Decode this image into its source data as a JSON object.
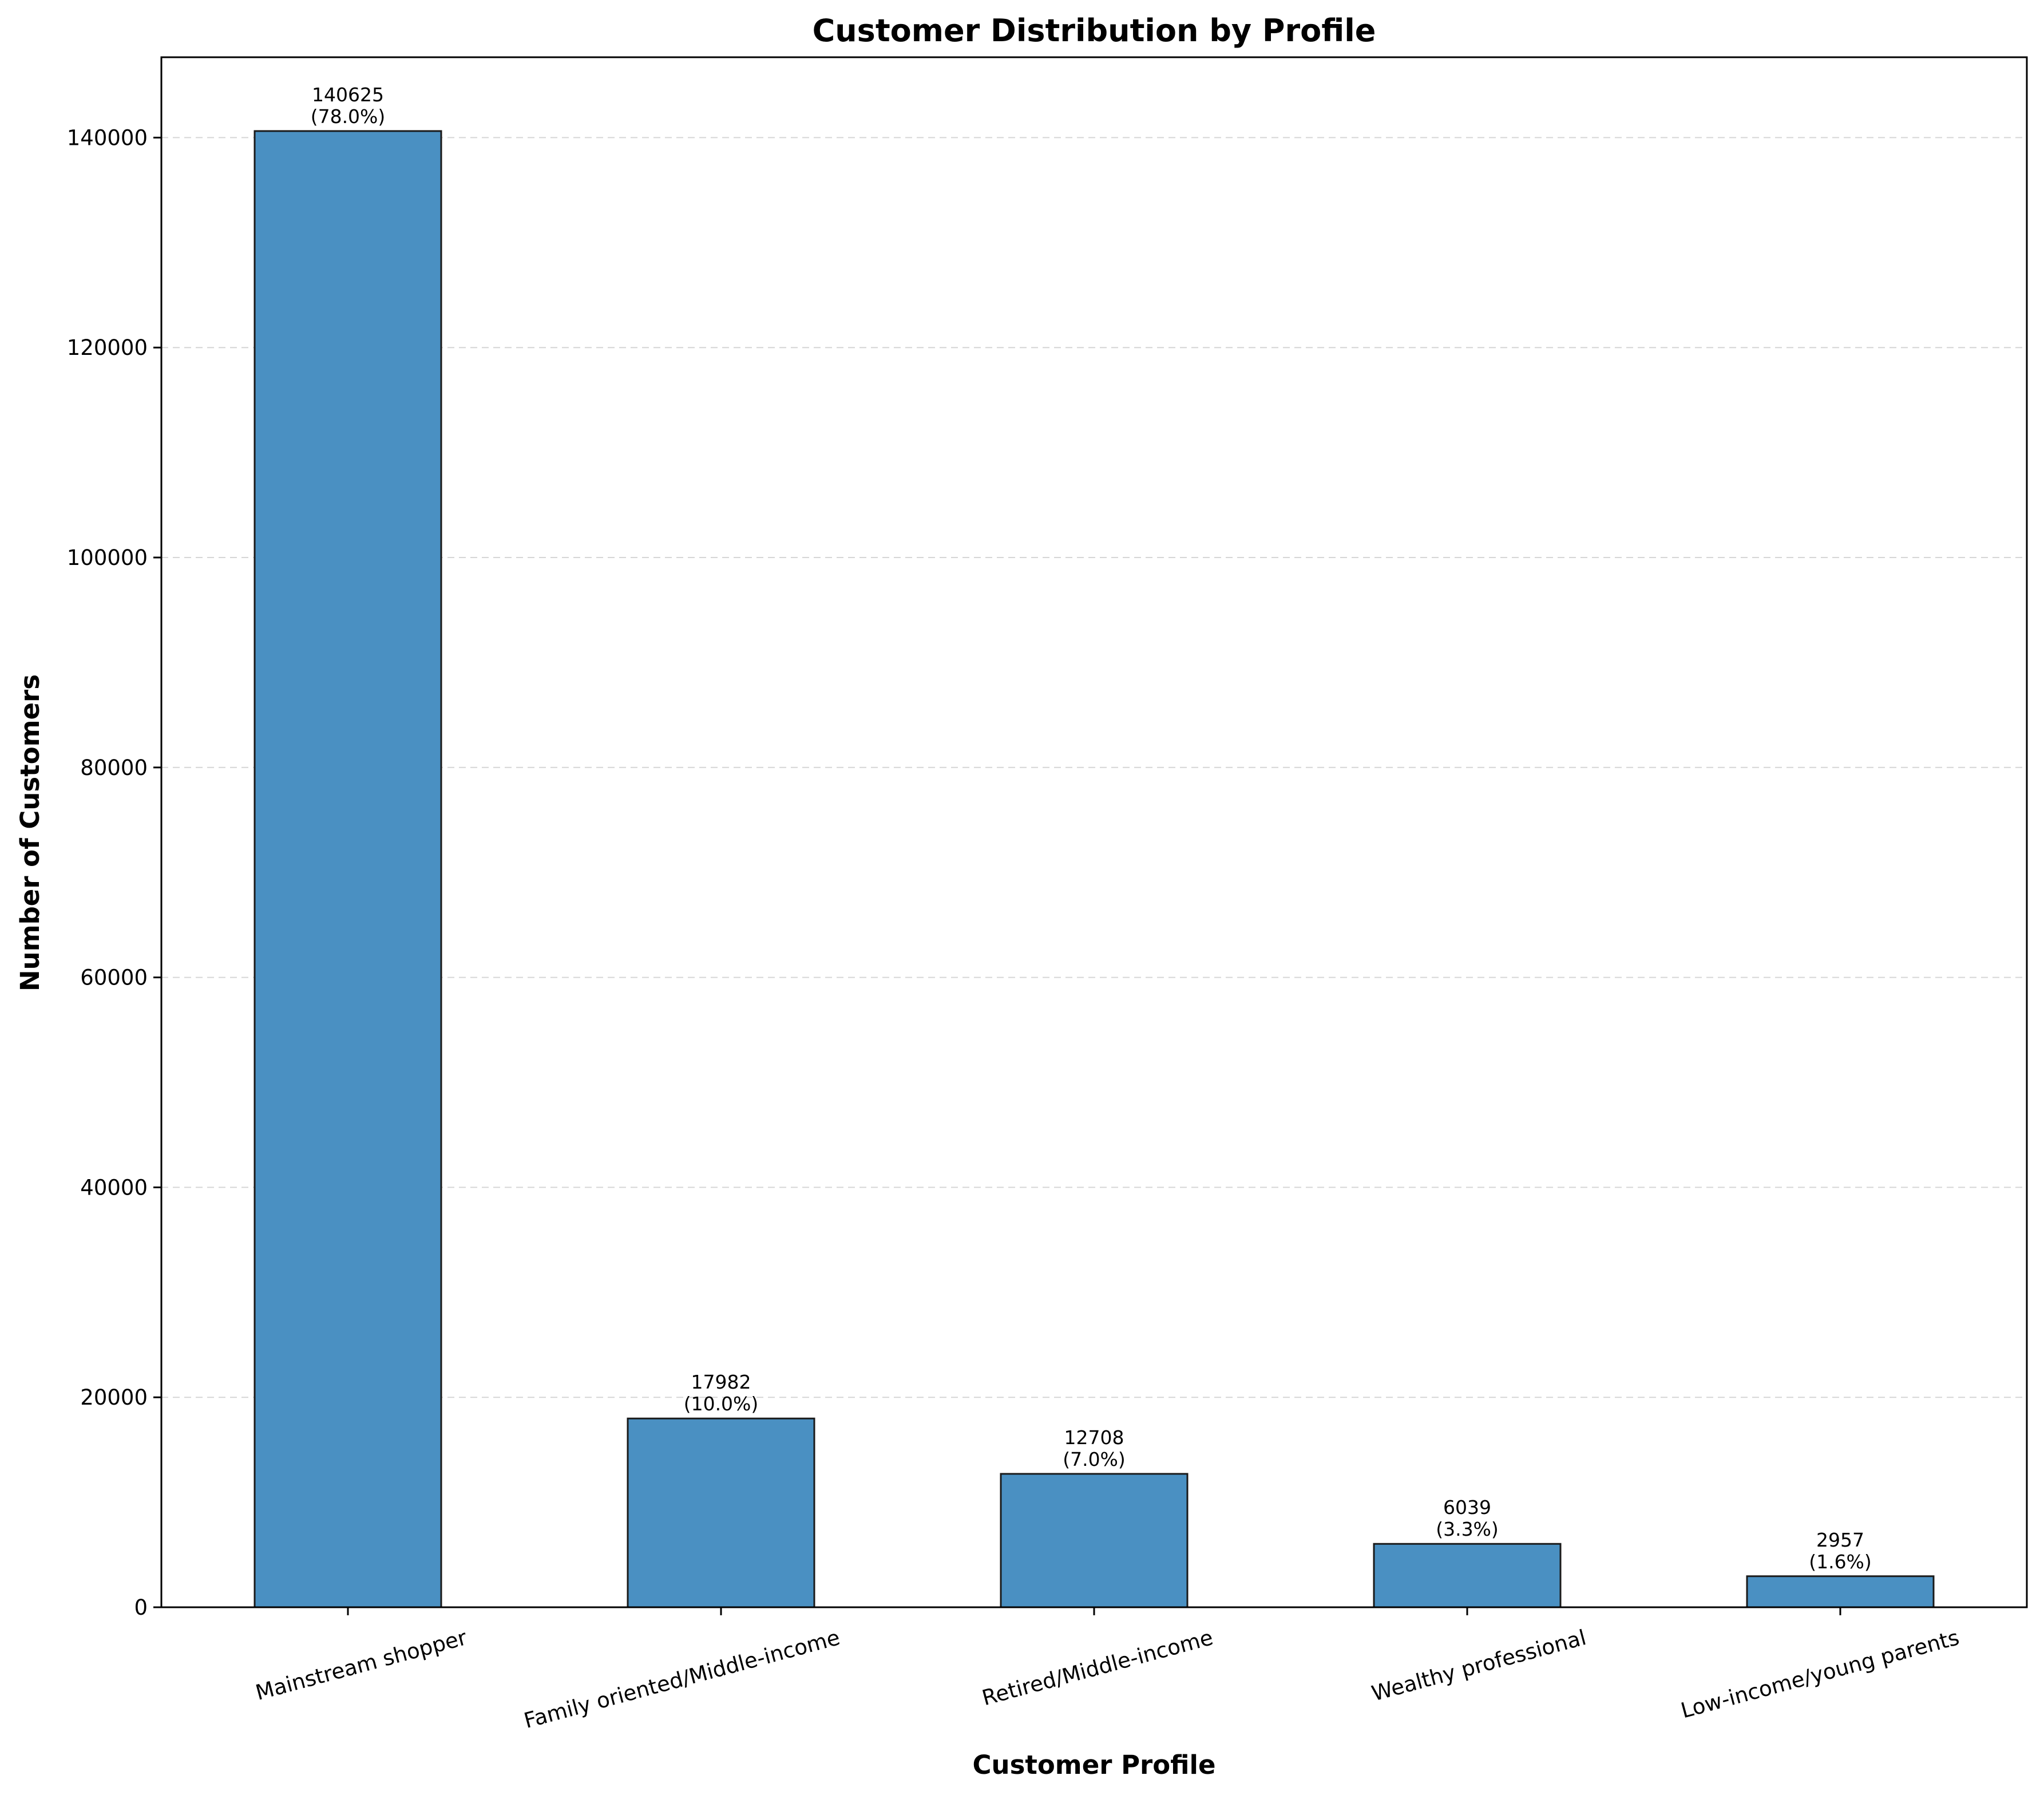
{
  "chart_data": {
    "type": "bar",
    "title": "Customer Distribution by Profile",
    "xlabel": "Customer Profile",
    "ylabel": "Number of Customers",
    "categories": [
      "Mainstream shopper",
      "Family oriented/Middle-income",
      "Retired/Middle-income",
      "Wealthy professional",
      "Low-income/young parents"
    ],
    "values": [
      140625,
      17982,
      12708,
      6039,
      2957
    ],
    "value_labels": [
      "140625",
      "17982",
      "12708",
      "6039",
      "2957"
    ],
    "percent_labels": [
      "(78.0%)",
      "(10.0%)",
      "(7.0%)",
      "(3.3%)",
      "(1.6%)"
    ],
    "ylim": [
      0,
      147656
    ],
    "yticks": [
      0,
      20000,
      40000,
      60000,
      80000,
      100000,
      120000,
      140000
    ],
    "ytick_labels": [
      "0",
      "20000",
      "40000",
      "60000",
      "80000",
      "100000",
      "120000",
      "140000"
    ],
    "grid": "y-dashed",
    "legend": "none",
    "colors": {
      "bar_fill": "#4a90c2",
      "bar_edge": "#1a1a1a",
      "grid": "#cccccc"
    }
  }
}
